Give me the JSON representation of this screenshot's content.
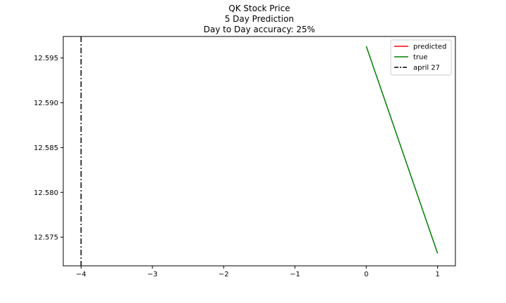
{
  "chart_data": {
    "type": "line",
    "title_lines": [
      "QK Stock Price",
      "5 Day Prediction",
      "Day to Day accuracy: 25%"
    ],
    "xlabel": "",
    "ylabel": "",
    "xlim": [
      -4.25,
      1.25
    ],
    "ylim": [
      12.5718,
      12.5974
    ],
    "xticks": [
      -4,
      -3,
      -2,
      -1,
      0,
      1
    ],
    "xtick_labels": [
      "−4",
      "−3",
      "−2",
      "−1",
      "0",
      "1"
    ],
    "yticks": [
      12.575,
      12.58,
      12.585,
      12.59,
      12.595
    ],
    "ytick_labels": [
      "12.575",
      "12.580",
      "12.585",
      "12.590",
      "12.595"
    ],
    "series": [
      {
        "name": "predicted",
        "color": "#ff0000",
        "style": "solid",
        "x": [],
        "y": []
      },
      {
        "name": "true",
        "color": "#008000",
        "style": "solid",
        "x": [
          0,
          1
        ],
        "y": [
          12.5963,
          12.5732
        ]
      }
    ],
    "vlines": [
      {
        "name": "april 27",
        "x": -4,
        "color": "#000000",
        "style": "dashdot"
      }
    ],
    "legend": {
      "placement": "top-right",
      "entries": [
        {
          "label": "predicted",
          "color": "#ff0000",
          "style": "solid"
        },
        {
          "label": "true",
          "color": "#008000",
          "style": "solid"
        },
        {
          "label": "april 27",
          "color": "#000000",
          "style": "dashdot"
        }
      ]
    },
    "grid": false
  }
}
